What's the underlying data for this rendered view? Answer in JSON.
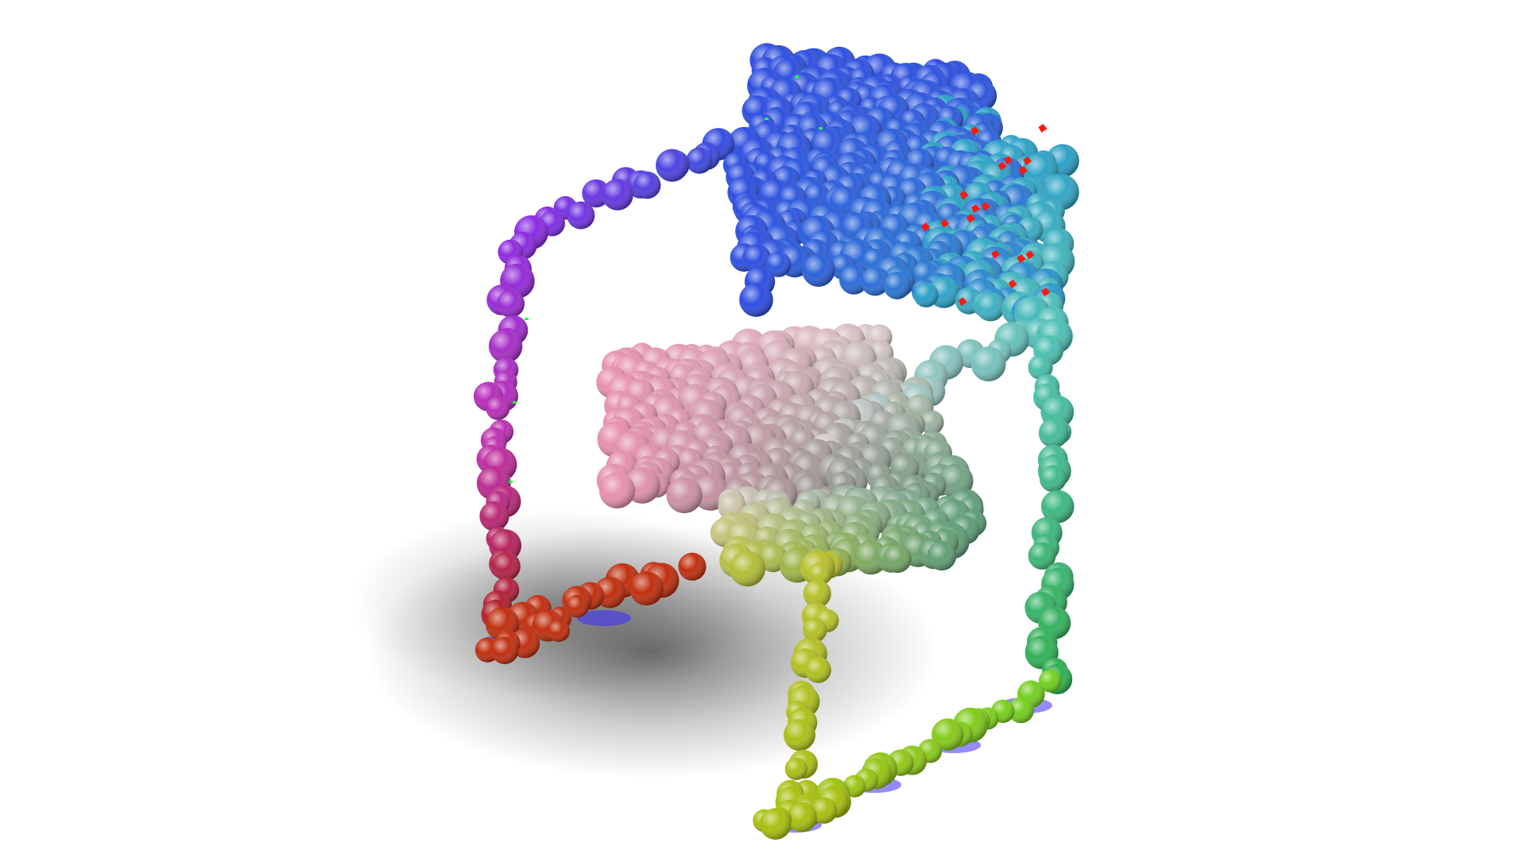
{
  "scene": {
    "subject": "point-cloud-chair",
    "background_color": "#ffffff",
    "shadow_color": "#000000",
    "highlight_colors": {
      "seat_base_glow": "#3a2bff",
      "back_specks": "#ff1a10",
      "green_specks": "#20ff40"
    },
    "part_colors": {
      "backrest_top": "#2e4fe0",
      "backrest_right": "#2b9fc8",
      "left_arm_top": "#8a2be2",
      "left_arm_mid": "#c030b0",
      "left_front_leg": "#b0202a",
      "left_runner": "#c03010",
      "seat_left": "#e890b0",
      "seat_center": "#d8c8c8",
      "seat_right": "#5c9c78",
      "right_arm": "#50c0b8",
      "right_rear_leg": "#30b050",
      "right_runner": "#70d020",
      "front_leg": "#b8c030",
      "front_runner_bottom": "#a8c010"
    }
  }
}
